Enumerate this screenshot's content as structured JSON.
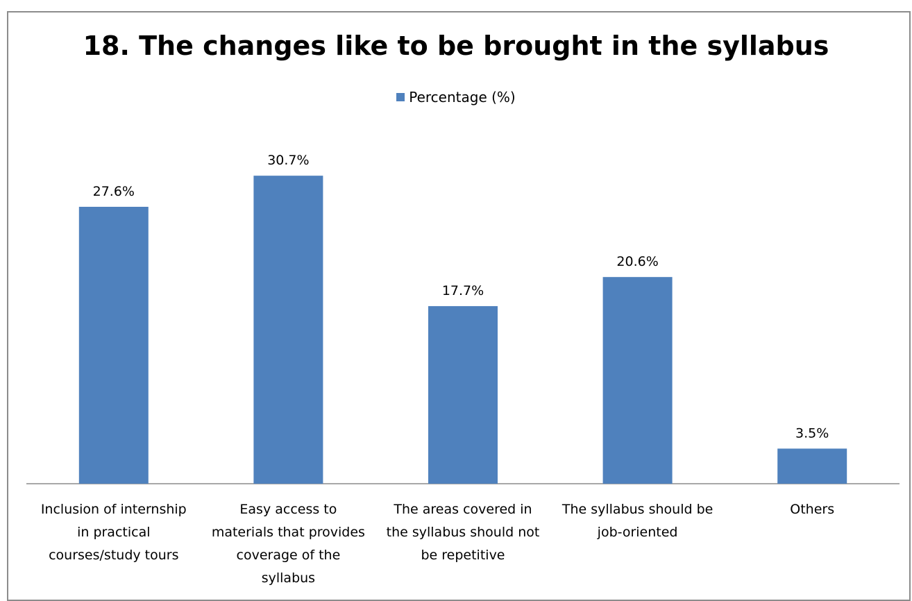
{
  "chart_data": {
    "type": "bar",
    "title": "18. The changes like to be brought in the syllabus",
    "legend": {
      "position": "top",
      "entries": [
        "Percentage (%)"
      ]
    },
    "categories": [
      [
        "Inclusion of internship",
        "in practical",
        "courses/study tours"
      ],
      [
        "Easy access to",
        "materials that provides",
        "coverage of the",
        "syllabus"
      ],
      [
        "The areas covered in",
        "the syllabus should not",
        "be repetitive"
      ],
      [
        "The syllabus should be",
        "job-oriented"
      ],
      [
        "Others"
      ]
    ],
    "series": [
      {
        "name": "Percentage (%)",
        "values": [
          27.6,
          30.7,
          17.7,
          20.6,
          3.5
        ],
        "labels": [
          "27.6%",
          "30.7%",
          "17.7%",
          "20.6%",
          "3.5%"
        ]
      }
    ],
    "ylim": [
      0,
      35
    ],
    "grid": false,
    "colors": {
      "bar": "#4f81bd",
      "axis": "#8c8c8c"
    }
  }
}
